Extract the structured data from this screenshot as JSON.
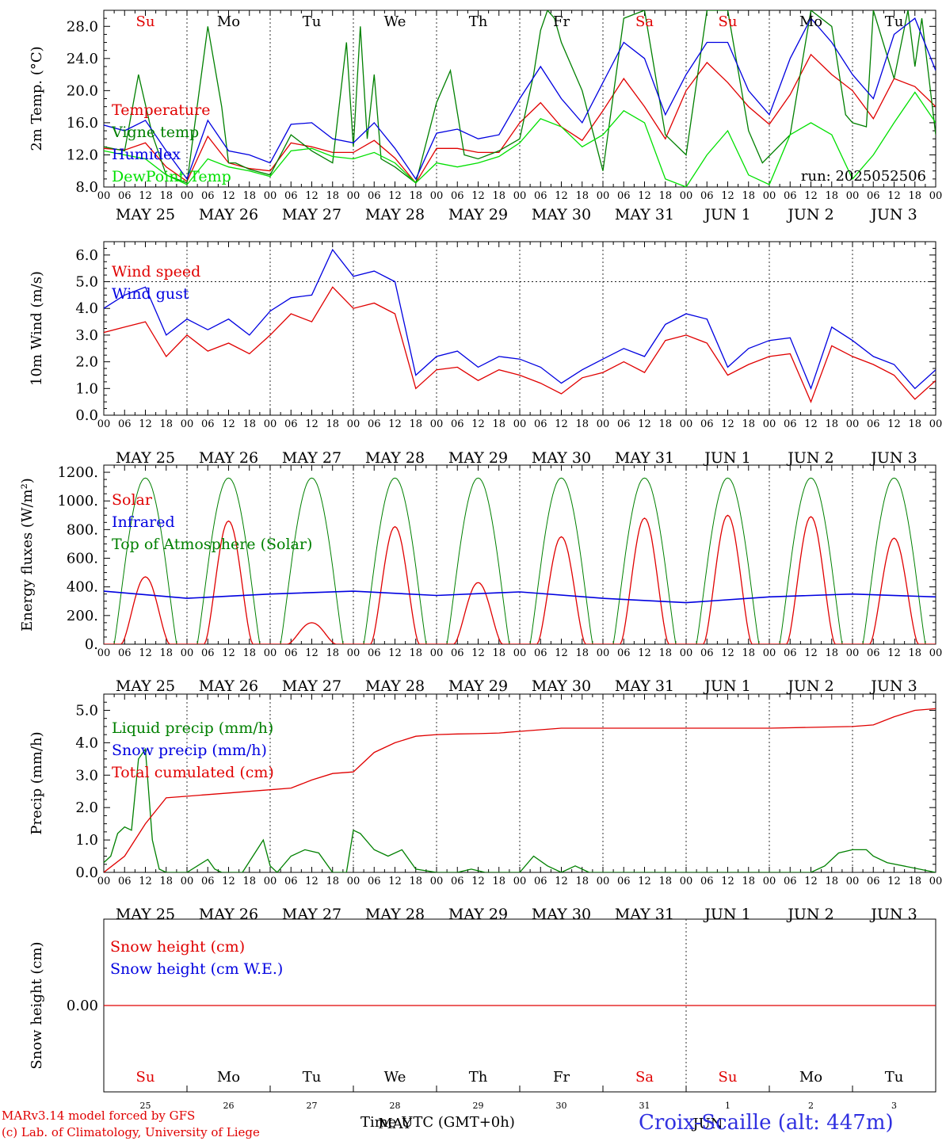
{
  "hours": [
    "00",
    "06",
    "12",
    "18"
  ],
  "day_axis_labels": [
    "MAY 25",
    "MAY 26",
    "MAY 27",
    "MAY 28",
    "MAY 29",
    "MAY 30",
    "MAY 31",
    "JUN  1",
    "JUN  2",
    "JUN  3"
  ],
  "weekday_labels": [
    {
      "text": "Su",
      "color": "#e00000"
    },
    {
      "text": "Mo",
      "color": "#000000"
    },
    {
      "text": "Tu",
      "color": "#000000"
    },
    {
      "text": "We",
      "color": "#000000"
    },
    {
      "text": "Th",
      "color": "#000000"
    },
    {
      "text": "Fr",
      "color": "#000000"
    },
    {
      "text": "Sa",
      "color": "#e00000"
    },
    {
      "text": "Su",
      "color": "#e00000"
    },
    {
      "text": "Mo",
      "color": "#000000"
    },
    {
      "text": "Tu",
      "color": "#000000"
    }
  ],
  "run_label": "run: 2025052506",
  "snow_day_numbers": [
    "25",
    "26",
    "27",
    "28",
    "29",
    "30",
    "31",
    "1",
    "2",
    "3"
  ],
  "snow_month_labels": [
    "MAY",
    "JUN"
  ],
  "footer": {
    "model_line": "MARv3.14 model forced by GFS",
    "lab_line": "(c) Lab. of Climatology, University of Liege",
    "time_label": "Time UTC (GMT+0h)",
    "station": "Croix-Scaille (alt: 447m)"
  },
  "chart_data": [
    {
      "id": "temp",
      "type": "line",
      "ylabel": "2m Temp. (°C)",
      "ylim": [
        8,
        30
      ],
      "yticks": [
        "8.0",
        "12.0",
        "16.0",
        "20.0",
        "24.0",
        "28.0"
      ],
      "hline": null,
      "series": [
        {
          "name": "Temperature",
          "color": "#e00000",
          "x": [
            0,
            6,
            12,
            18,
            24,
            30,
            36,
            42,
            48,
            54,
            60,
            66,
            72,
            78,
            84,
            90,
            96,
            102,
            108,
            114,
            120,
            126,
            132,
            138,
            144,
            150,
            156,
            162,
            168,
            174,
            180,
            186,
            192,
            198,
            204,
            210,
            216,
            222,
            228,
            234,
            240
          ],
          "y": [
            12.8,
            12.6,
            13.5,
            10.5,
            8.7,
            14.3,
            11.0,
            10.3,
            10.0,
            13.5,
            13.0,
            12.3,
            12.3,
            13.8,
            11.6,
            8.5,
            12.8,
            12.8,
            12.3,
            12.3,
            16.0,
            18.5,
            15.5,
            13.8,
            17.5,
            21.5,
            18.0,
            14.0,
            20.0,
            23.5,
            21.0,
            18.0,
            15.8,
            19.5,
            24.5,
            22.0,
            20.0,
            16.5,
            21.5,
            20.5,
            18.0
          ]
        },
        {
          "name": "Vigne temp",
          "color": "#008000",
          "x": [
            0,
            6,
            10,
            14,
            18,
            24,
            30,
            34,
            36,
            38,
            42,
            48,
            54,
            60,
            66,
            70,
            72,
            74,
            76,
            78,
            80,
            84,
            90,
            96,
            100,
            104,
            108,
            114,
            120,
            124,
            126,
            128,
            130,
            132,
            138,
            144,
            150,
            156,
            162,
            168,
            174,
            180,
            186,
            190,
            198,
            204,
            210,
            214,
            216,
            220,
            222,
            228,
            232,
            234,
            236,
            240
          ],
          "y": [
            13.0,
            12.5,
            22.0,
            14.5,
            9.5,
            8.5,
            28.0,
            18.0,
            11.0,
            11.0,
            10.2,
            9.5,
            14.5,
            12.5,
            11.0,
            26.0,
            13.0,
            28.0,
            14.0,
            22.0,
            11.5,
            10.5,
            8.5,
            18.5,
            22.5,
            12.0,
            11.5,
            12.5,
            14.0,
            22.0,
            27.5,
            30.0,
            29.0,
            26.0,
            20.0,
            10.0,
            29.0,
            30.0,
            14.5,
            12.0,
            30.0,
            30.0,
            15.0,
            11.0,
            14.5,
            30.0,
            28.0,
            17.0,
            16.0,
            15.5,
            30.0,
            21.5,
            30.0,
            23.0,
            29.0,
            14.5
          ]
        },
        {
          "name": "Humidex",
          "color": "#0000e0",
          "x": [
            0,
            6,
            12,
            18,
            24,
            30,
            36,
            42,
            48,
            54,
            60,
            66,
            72,
            78,
            84,
            90,
            96,
            102,
            108,
            114,
            120,
            126,
            132,
            138,
            144,
            150,
            156,
            162,
            168,
            174,
            180,
            186,
            192,
            198,
            204,
            210,
            216,
            222,
            228,
            234,
            240
          ],
          "y": [
            15.7,
            15.0,
            16.3,
            12.5,
            9.0,
            16.3,
            12.5,
            12.0,
            11.0,
            15.8,
            16.0,
            14.0,
            13.5,
            16.0,
            12.8,
            9.0,
            14.7,
            15.2,
            14.0,
            14.5,
            19.0,
            23.0,
            19.0,
            16.0,
            21.0,
            26.0,
            24.0,
            17.0,
            22.0,
            26.0,
            26.0,
            20.0,
            17.0,
            24.0,
            29.0,
            26.0,
            22.0,
            19.0,
            27.0,
            29.0,
            22.5
          ]
        },
        {
          "name": "DewPoint Temp",
          "color": "#00e000",
          "x": [
            0,
            6,
            12,
            18,
            24,
            30,
            36,
            42,
            48,
            54,
            60,
            66,
            72,
            78,
            84,
            90,
            96,
            102,
            108,
            114,
            120,
            126,
            132,
            138,
            144,
            150,
            156,
            162,
            168,
            174,
            180,
            186,
            192,
            198,
            204,
            210,
            216,
            222,
            228,
            234,
            240
          ],
          "y": [
            12.5,
            12.0,
            11.5,
            9.5,
            8.3,
            11.5,
            10.5,
            10.0,
            9.3,
            12.5,
            12.8,
            11.8,
            11.5,
            12.3,
            11.0,
            8.5,
            11.0,
            10.5,
            11.0,
            11.8,
            13.5,
            16.5,
            15.5,
            13.0,
            14.5,
            17.5,
            16.0,
            9.0,
            8.0,
            12.0,
            15.0,
            9.5,
            8.3,
            14.5,
            16.0,
            14.5,
            9.0,
            12.0,
            16.0,
            19.8,
            16.0
          ]
        }
      ]
    },
    {
      "id": "wind",
      "type": "line",
      "ylabel": "10m Wind (m/s)",
      "ylim": [
        0,
        6.5
      ],
      "yticks": [
        "0.0",
        "1.0",
        "2.0",
        "3.0",
        "4.0",
        "5.0",
        "6.0"
      ],
      "hline": 5.0,
      "series": [
        {
          "name": "Wind speed",
          "color": "#e00000",
          "x": [
            0,
            6,
            12,
            18,
            24,
            30,
            36,
            42,
            48,
            54,
            60,
            66,
            72,
            78,
            84,
            90,
            96,
            102,
            108,
            114,
            120,
            126,
            132,
            138,
            144,
            150,
            156,
            162,
            168,
            174,
            180,
            186,
            192,
            198,
            204,
            210,
            216,
            222,
            228,
            234,
            240
          ],
          "y": [
            3.1,
            3.3,
            3.5,
            2.2,
            3.0,
            2.4,
            2.7,
            2.3,
            3.0,
            3.8,
            3.5,
            4.8,
            4.0,
            4.2,
            3.8,
            1.0,
            1.7,
            1.8,
            1.3,
            1.7,
            1.5,
            1.2,
            0.8,
            1.4,
            1.6,
            2.0,
            1.6,
            2.8,
            3.0,
            2.7,
            1.5,
            1.9,
            2.2,
            2.3,
            0.5,
            2.6,
            2.2,
            1.9,
            1.5,
            0.6,
            1.3
          ]
        },
        {
          "name": "Wind gust",
          "color": "#0000e0",
          "x": [
            0,
            6,
            12,
            18,
            24,
            30,
            36,
            42,
            48,
            54,
            60,
            66,
            72,
            78,
            84,
            90,
            96,
            102,
            108,
            114,
            120,
            126,
            132,
            138,
            144,
            150,
            156,
            162,
            168,
            174,
            180,
            186,
            192,
            198,
            204,
            210,
            216,
            222,
            228,
            234,
            240
          ],
          "y": [
            4.0,
            4.5,
            4.8,
            3.0,
            3.6,
            3.2,
            3.6,
            3.0,
            3.9,
            4.4,
            4.5,
            6.2,
            5.2,
            5.4,
            5.0,
            1.5,
            2.2,
            2.4,
            1.8,
            2.2,
            2.1,
            1.8,
            1.2,
            1.7,
            2.1,
            2.5,
            2.2,
            3.4,
            3.8,
            3.6,
            1.8,
            2.5,
            2.8,
            2.9,
            1.0,
            3.3,
            2.8,
            2.2,
            1.9,
            1.0,
            1.7
          ]
        }
      ]
    },
    {
      "id": "energy",
      "type": "line",
      "ylabel": "Energy fluxes (W/m²)",
      "ylim": [
        0,
        1250
      ],
      "yticks": [
        "0.",
        "200.",
        "400.",
        "600.",
        "800.",
        "1000.",
        "1200."
      ],
      "hline": null,
      "toa_peak": 1160,
      "solar_peaks": [
        470,
        860,
        150,
        820,
        430,
        750,
        880,
        900,
        890,
        740
      ],
      "series": [
        {
          "name": "Solar",
          "color": "#e00000"
        },
        {
          "name": "Infrared",
          "color": "#0000e0",
          "x": [
            0,
            24,
            48,
            72,
            96,
            120,
            144,
            168,
            192,
            216,
            240
          ],
          "y": [
            370,
            320,
            350,
            370,
            340,
            365,
            320,
            290,
            330,
            350,
            330
          ]
        },
        {
          "name": "Top of Atmosphere (Solar)",
          "color": "#008000"
        }
      ]
    },
    {
      "id": "precip",
      "type": "line",
      "ylabel": "Precip (mm/h)",
      "ylim": [
        0,
        5.5
      ],
      "yticks": [
        "0.0",
        "1.0",
        "2.0",
        "3.0",
        "4.0",
        "5.0"
      ],
      "hline": null,
      "series": [
        {
          "name": "Liquid precip (mm/h)",
          "color": "#008000",
          "x": [
            0,
            2,
            4,
            6,
            8,
            10,
            12,
            14,
            16,
            18,
            24,
            30,
            32,
            34,
            40,
            46,
            48,
            50,
            54,
            58,
            62,
            66,
            70,
            72,
            74,
            78,
            82,
            86,
            90,
            96,
            102,
            106,
            110,
            120,
            124,
            128,
            132,
            136,
            140,
            144,
            180,
            204,
            208,
            212,
            216,
            220,
            222,
            226,
            240
          ],
          "y": [
            0.3,
            0.5,
            1.2,
            1.4,
            1.3,
            3.5,
            3.8,
            1.0,
            0.1,
            0.0,
            0.0,
            0.4,
            0.1,
            0.0,
            0.0,
            1.0,
            0.2,
            0.0,
            0.5,
            0.7,
            0.6,
            0.0,
            0.0,
            1.3,
            1.2,
            0.7,
            0.5,
            0.7,
            0.1,
            0.0,
            0.0,
            0.1,
            0.0,
            0.0,
            0.5,
            0.2,
            0.0,
            0.2,
            0.0,
            0.0,
            0.0,
            0.0,
            0.2,
            0.6,
            0.7,
            0.7,
            0.5,
            0.3,
            0.0
          ]
        },
        {
          "name": "Snow precip (mm/h)",
          "color": "#0000e0"
        },
        {
          "name": "Total cumulated (cm)",
          "color": "#e00000",
          "x": [
            0,
            6,
            12,
            18,
            24,
            30,
            36,
            42,
            48,
            54,
            60,
            66,
            72,
            78,
            84,
            90,
            96,
            102,
            108,
            114,
            120,
            126,
            132,
            138,
            144,
            168,
            192,
            216,
            222,
            228,
            234,
            240
          ],
          "y": [
            0.0,
            0.5,
            1.5,
            2.3,
            2.35,
            2.4,
            2.45,
            2.5,
            2.55,
            2.6,
            2.85,
            3.05,
            3.1,
            3.7,
            4.0,
            4.2,
            4.25,
            4.27,
            4.28,
            4.3,
            4.35,
            4.4,
            4.45,
            4.45,
            4.45,
            4.45,
            4.45,
            4.5,
            4.55,
            4.8,
            5.0,
            5.05
          ]
        }
      ]
    },
    {
      "id": "snow",
      "type": "line",
      "ylabel": "Snow height (cm)",
      "ylim": [
        -1,
        1
      ],
      "yticks": [
        "0.00"
      ],
      "hline": null,
      "series": [
        {
          "name": "Snow height (cm)",
          "color": "#e00000",
          "x": [
            0,
            240
          ],
          "y": [
            0,
            0
          ]
        },
        {
          "name": "Snow height (cm W.E.)",
          "color": "#0000e0"
        }
      ]
    }
  ]
}
